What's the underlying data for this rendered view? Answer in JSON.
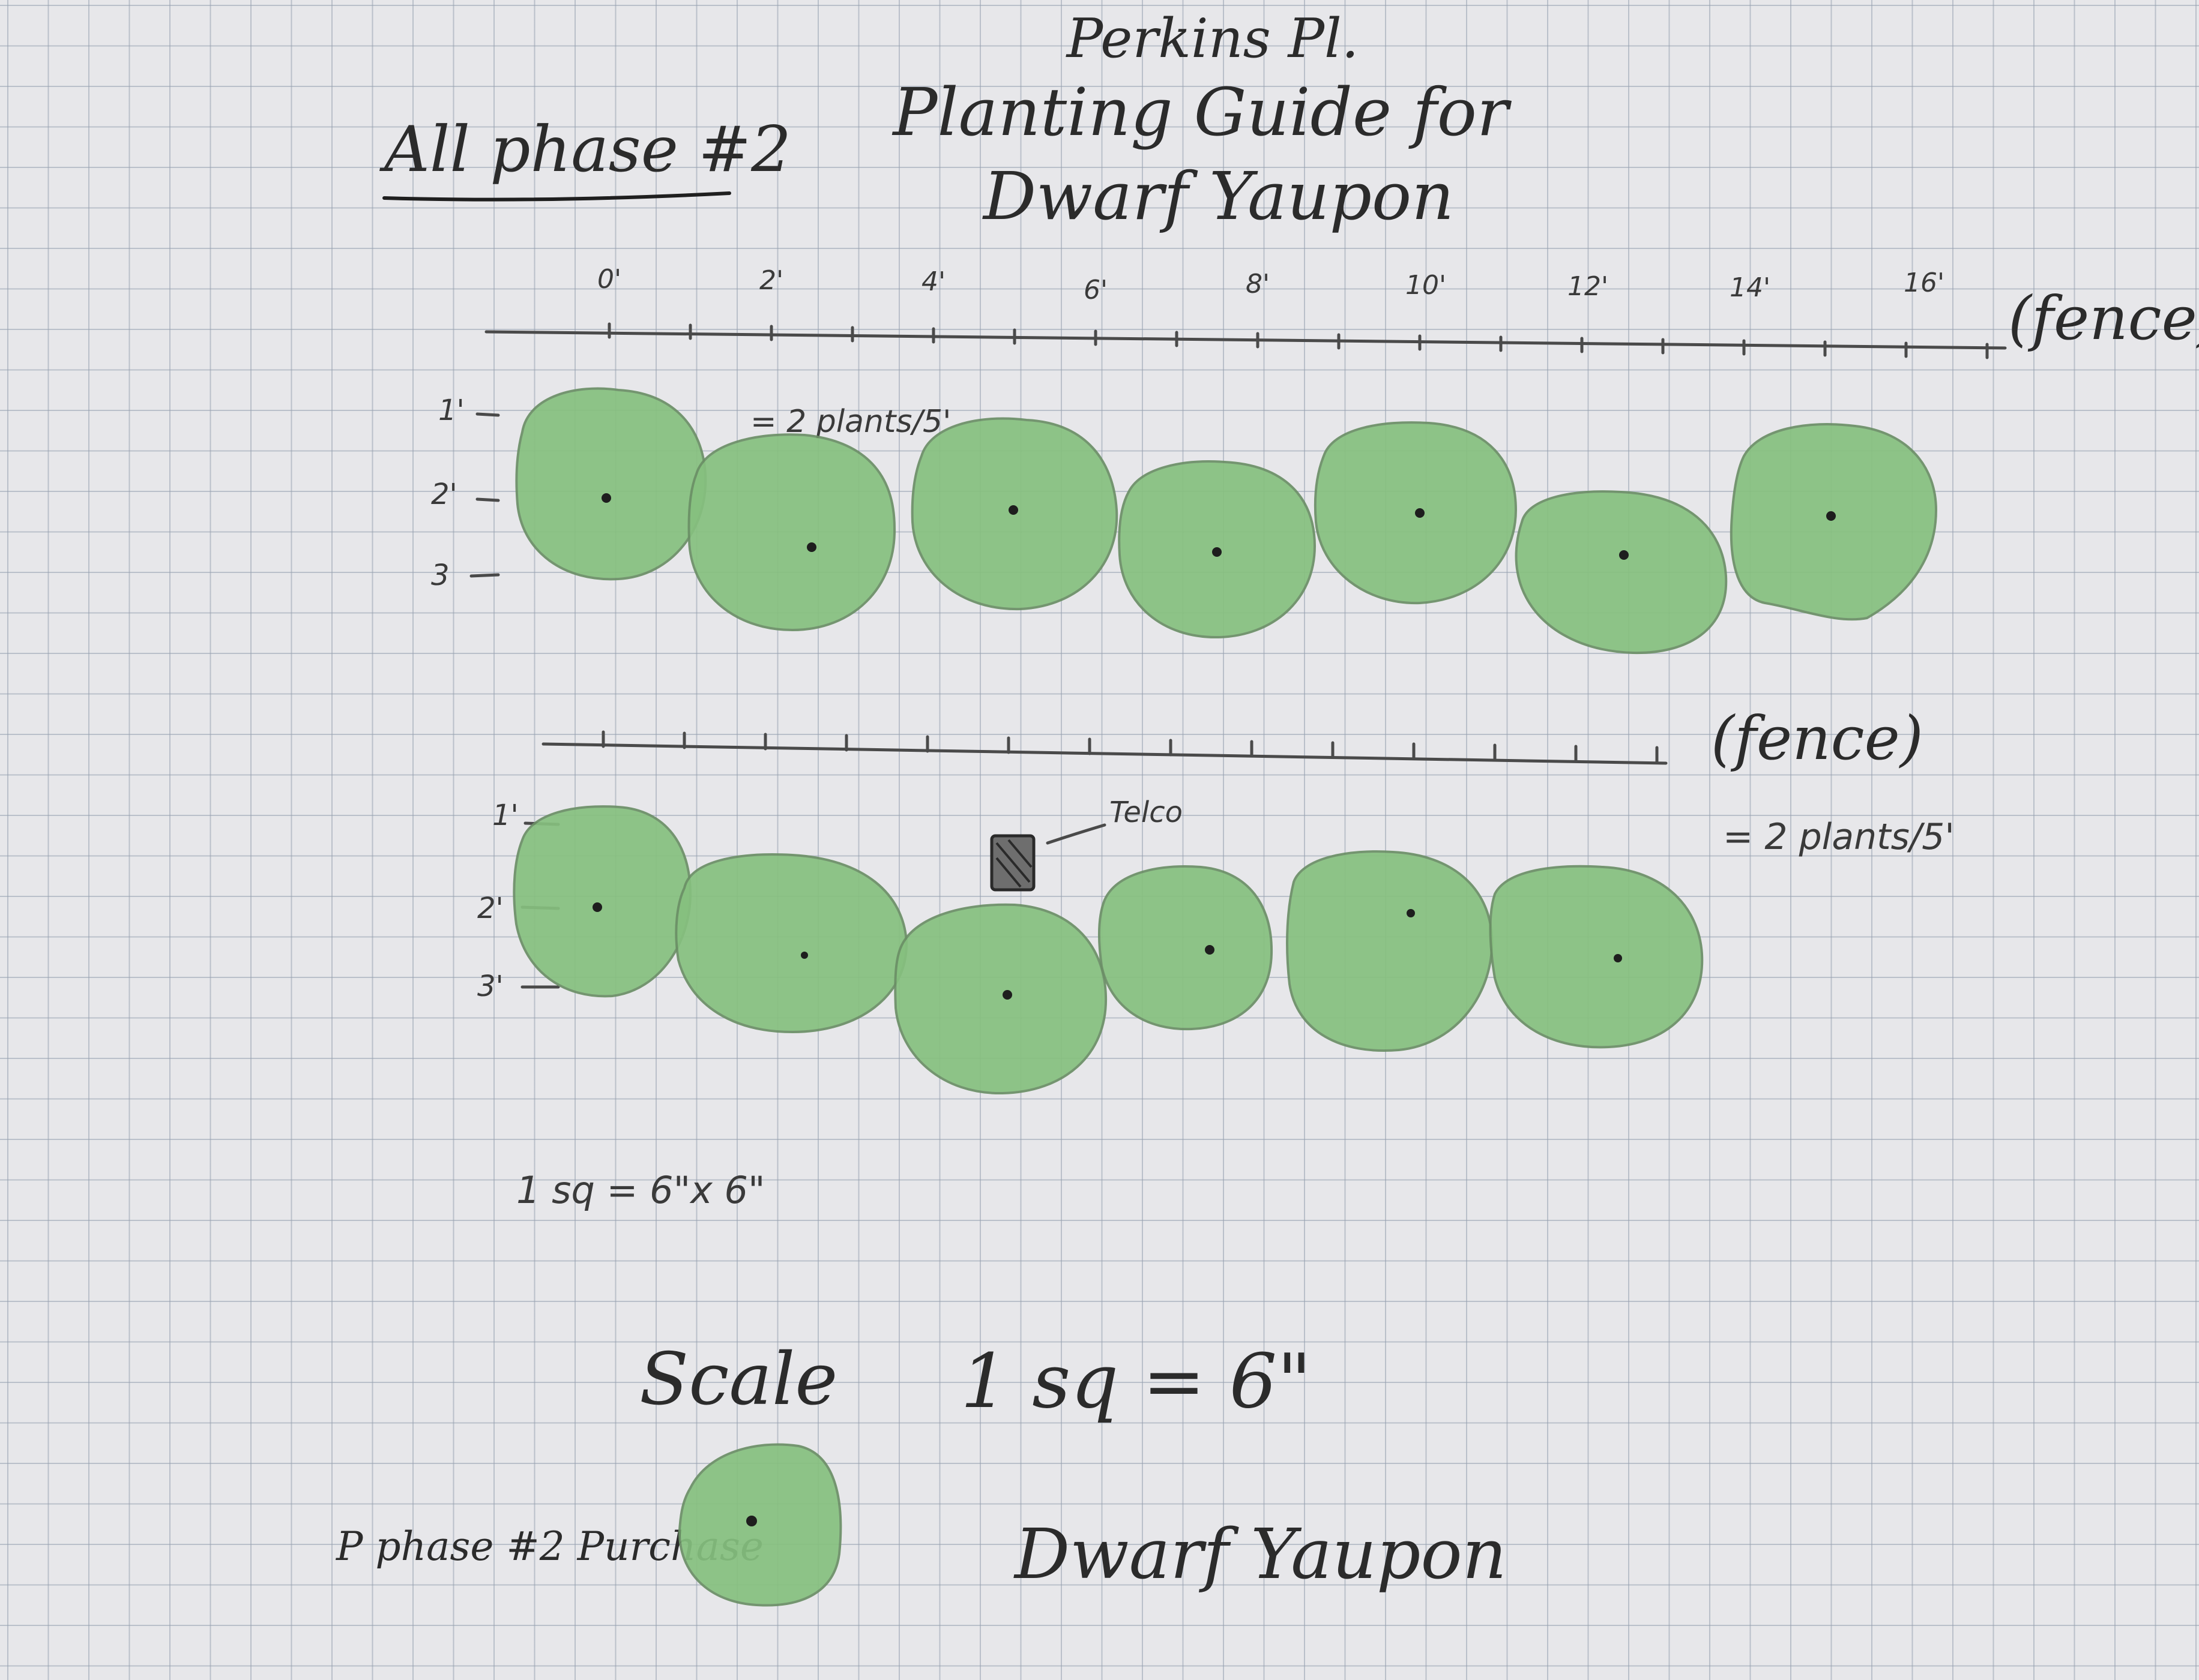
{
  "title": {
    "line1": "Perkins Pl.",
    "line2": "Planting Guide for",
    "line3": "Dwarf Yaupon"
  },
  "phase_label": "All phase #2",
  "ruler_top": {
    "ticks": [
      "0'",
      "2'",
      "4'",
      "6'",
      "8'",
      "10'",
      "12'",
      "14'",
      "16'"
    ],
    "fence_label": "(fence)"
  },
  "row1": {
    "depth_labels": [
      "1'",
      "2'",
      "3"
    ],
    "spacing_note": "= 2 plants/5'",
    "plant_count": 7
  },
  "row2": {
    "fence_label": "(fence)",
    "spacing_note": "= 2 plants/5'",
    "depth_labels": [
      "1'",
      "2'",
      "3'"
    ],
    "telco_label": "Telco",
    "plant_count": 6
  },
  "grid_note": "1 sq = 6\"x 6\"",
  "scale": {
    "label": "Scale",
    "value": "1 sq = 6\""
  },
  "legend": {
    "label": "P phase #2 Purchase",
    "plant_name": "Dwarf Yaupon"
  },
  "colors": {
    "shrub_fill": "#86c07f",
    "shrub_outline": "#6b8f66",
    "paper": "#e7e7ea",
    "grid": "#969fae"
  }
}
